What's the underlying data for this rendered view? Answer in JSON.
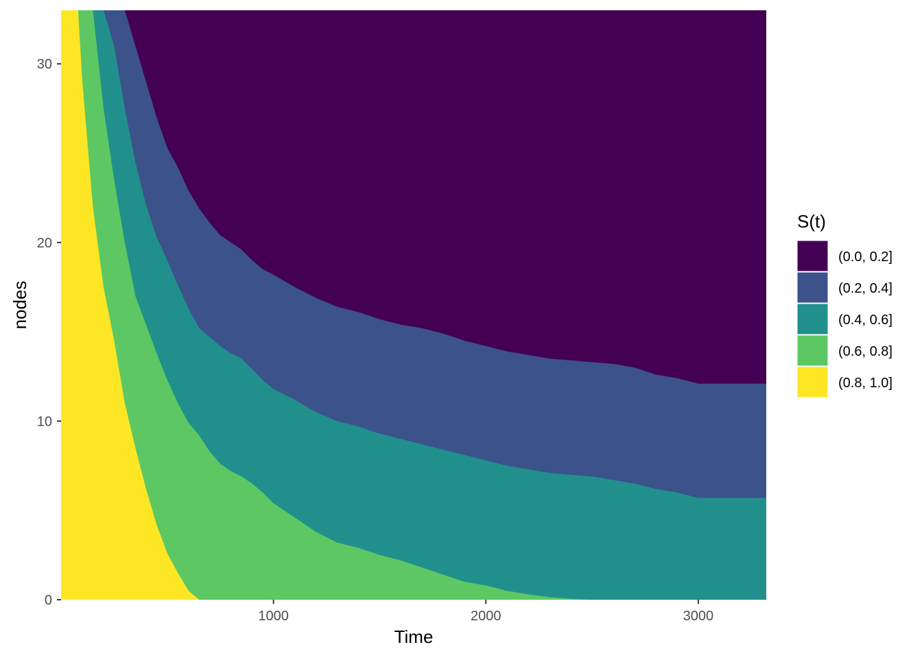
{
  "chart_data": {
    "type": "area",
    "title": "",
    "xlabel": "Time",
    "ylabel": "nodes",
    "xlim": [
      0,
      3320
    ],
    "ylim": [
      0,
      33
    ],
    "x_ticks": [
      1000,
      2000,
      3000
    ],
    "x_tick_labels": [
      "1000",
      "2000",
      "3000"
    ],
    "y_ticks": [
      0,
      10,
      20,
      30
    ],
    "y_tick_labels": [
      "0",
      "10",
      "20",
      "30"
    ],
    "grid": false,
    "legend": {
      "title": "S(t)",
      "position": "right",
      "entries": [
        {
          "label": "(0.0, 0.2]",
          "color": "#440154"
        },
        {
          "label": "(0.2, 0.4]",
          "color": "#3B528B"
        },
        {
          "label": "(0.4, 0.6]",
          "color": "#21908C"
        },
        {
          "label": "(0.6, 0.8]",
          "color": "#5DC863"
        },
        {
          "label": "(0.8, 1.0]",
          "color": "#FDE725"
        }
      ]
    },
    "x": [
      0,
      80,
      100,
      150,
      200,
      250,
      300,
      350,
      400,
      450,
      500,
      550,
      600,
      650,
      700,
      750,
      800,
      850,
      900,
      950,
      1000,
      1100,
      1200,
      1300,
      1400,
      1500,
      1600,
      1700,
      1800,
      1900,
      2000,
      2100,
      2200,
      2300,
      2400,
      2500,
      2600,
      2700,
      2800,
      2900,
      3000,
      3100,
      3200,
      3320
    ],
    "series": [
      {
        "name": "(0.0, 0.2]",
        "color": "#440154",
        "values": [
          33,
          33,
          33,
          33,
          33,
          33,
          33,
          33,
          33,
          33,
          33,
          33,
          33,
          33,
          33,
          33,
          33,
          33,
          33,
          33,
          33,
          33,
          33,
          33,
          33,
          33,
          33,
          33,
          33,
          33,
          33,
          33,
          33,
          33,
          33,
          33,
          33,
          33,
          33,
          33,
          33,
          33,
          33,
          33
        ]
      },
      {
        "name": "(0.2, 0.4]",
        "color": "#3B528B",
        "values": [
          33,
          33,
          33,
          33,
          33,
          33,
          33,
          31.0,
          29.0,
          27.0,
          25.3,
          24.2,
          22.9,
          21.9,
          21.1,
          20.4,
          20.0,
          19.6,
          19.0,
          18.5,
          18.2,
          17.5,
          16.9,
          16.4,
          16.1,
          15.7,
          15.4,
          15.2,
          14.9,
          14.5,
          14.2,
          13.9,
          13.7,
          13.5,
          13.4,
          13.3,
          13.2,
          13.0,
          12.6,
          12.4,
          12.1,
          12.1,
          12.1,
          12.1
        ]
      },
      {
        "name": "(0.4, 0.6]",
        "color": "#21908C",
        "values": [
          33,
          33,
          33,
          33,
          33,
          31.0,
          27.5,
          24.5,
          22.1,
          20.3,
          19.0,
          17.6,
          16.3,
          15.2,
          14.7,
          14.2,
          13.8,
          13.5,
          12.9,
          12.3,
          11.8,
          11.2,
          10.5,
          10.0,
          9.7,
          9.3,
          9.0,
          8.7,
          8.4,
          8.1,
          7.8,
          7.5,
          7.3,
          7.1,
          7.0,
          6.9,
          6.7,
          6.5,
          6.2,
          6.0,
          5.7,
          5.7,
          5.7,
          5.7
        ]
      },
      {
        "name": "(0.6, 0.8]",
        "color": "#5DC863",
        "values": [
          33,
          33,
          33,
          33,
          27.5,
          23.5,
          20.0,
          17.0,
          15.4,
          13.8,
          12.3,
          11.0,
          9.9,
          9.2,
          8.3,
          7.6,
          7.2,
          6.9,
          6.5,
          6.0,
          5.4,
          4.6,
          3.8,
          3.2,
          2.9,
          2.5,
          2.2,
          1.8,
          1.4,
          1.0,
          0.8,
          0.5,
          0.3,
          0.15,
          0.05,
          0,
          0,
          0,
          0,
          0,
          0,
          0,
          0,
          0
        ]
      },
      {
        "name": "(0.8, 1.0]",
        "color": "#FDE725",
        "values": [
          33,
          33,
          29.0,
          22.0,
          17.5,
          14.5,
          11.0,
          8.5,
          6.2,
          4.2,
          2.6,
          1.5,
          0.5,
          0,
          0,
          0,
          0,
          0,
          0,
          0,
          0,
          0,
          0,
          0,
          0,
          0,
          0,
          0,
          0,
          0,
          0,
          0,
          0,
          0,
          0,
          0,
          0,
          0,
          0,
          0,
          0,
          0,
          0,
          0
        ]
      }
    ]
  }
}
